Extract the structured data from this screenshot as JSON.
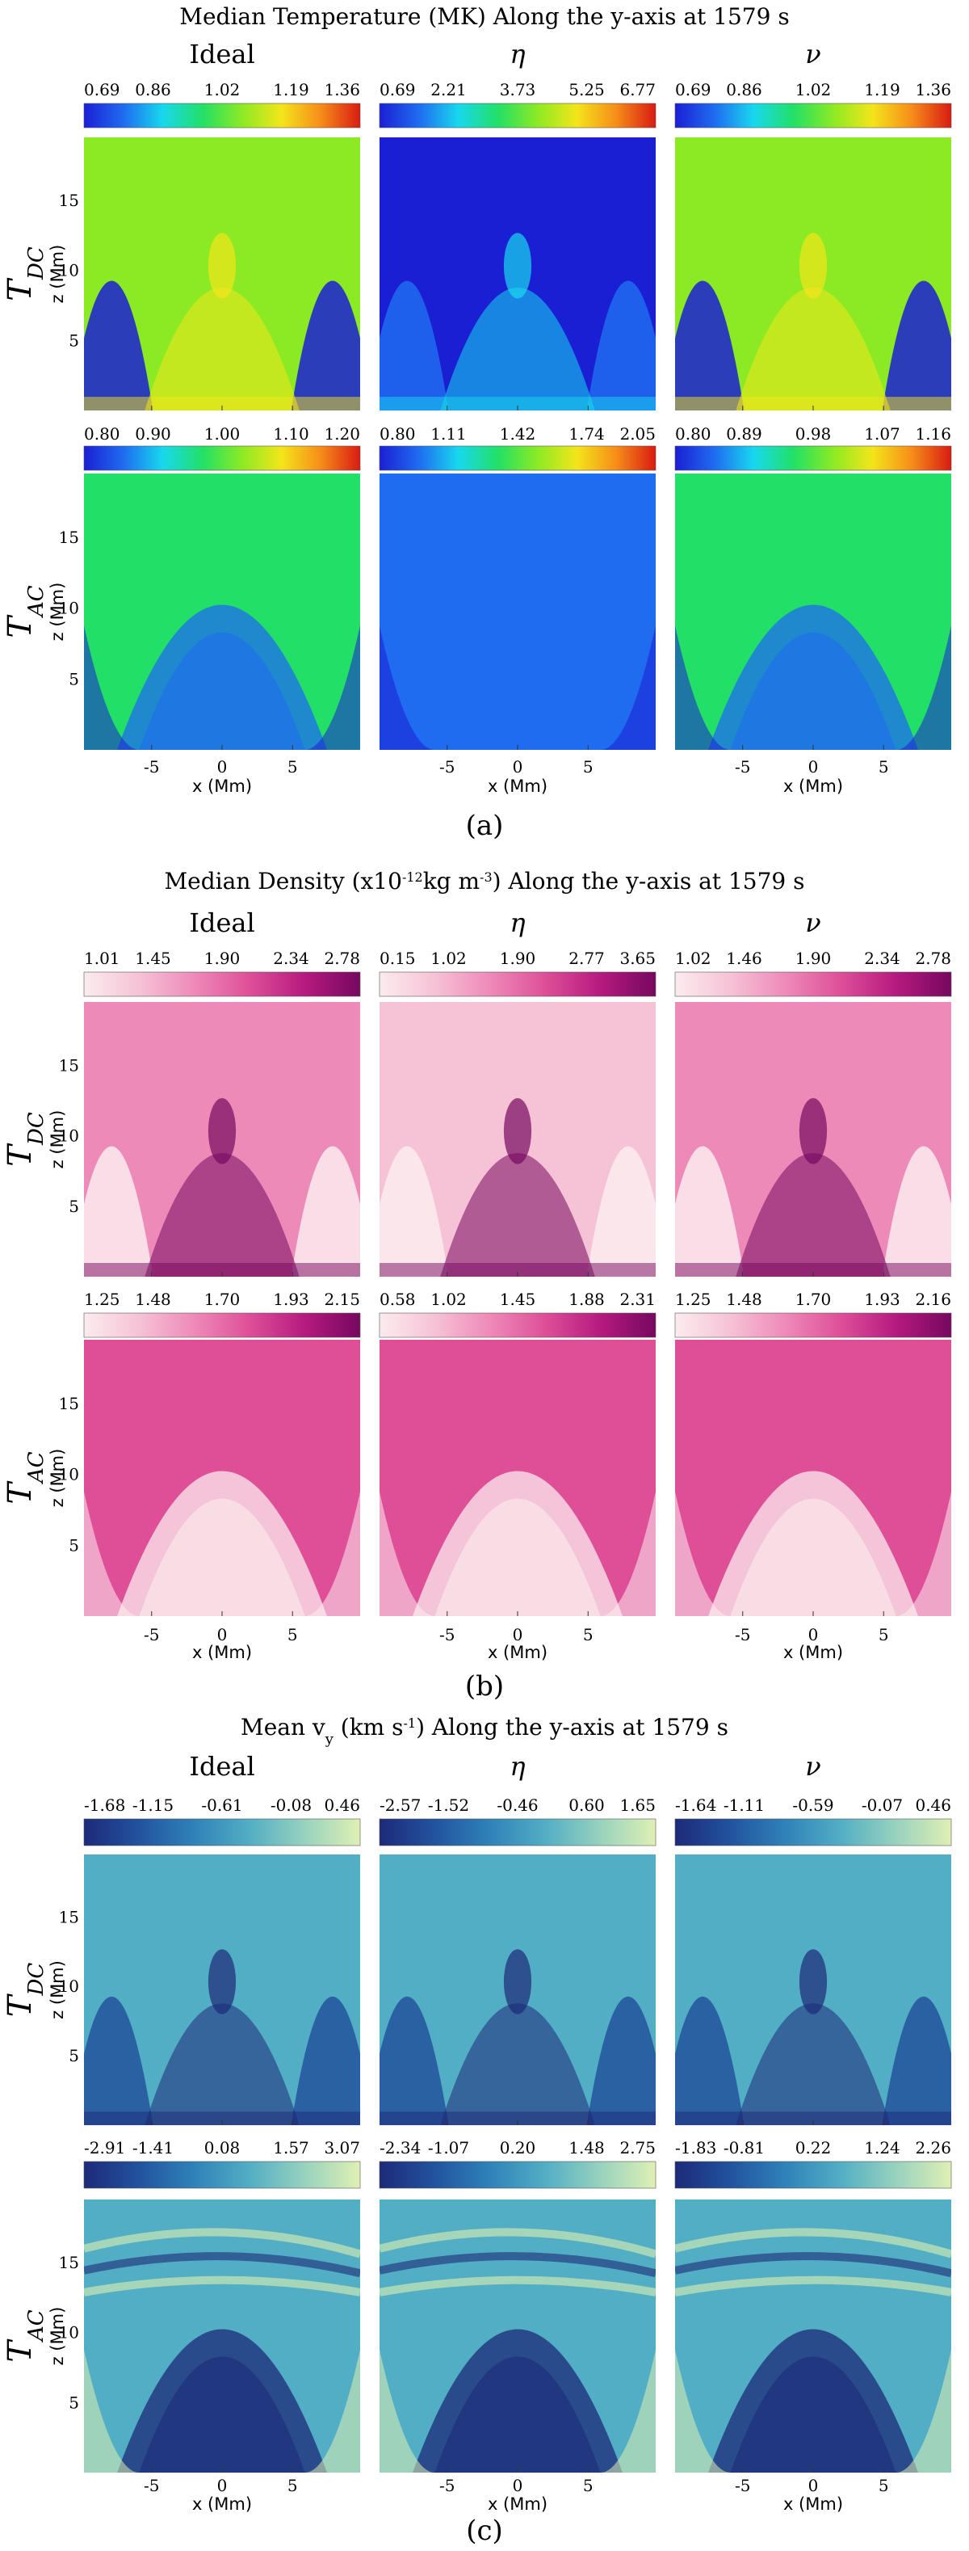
{
  "figure": {
    "columns": [
      "Ideal",
      "η",
      "ν"
    ],
    "rows": [
      "DC",
      "AC"
    ],
    "row_prefix": "T",
    "z_axis_label": "z (Mm)",
    "x_axis_label": "x (Mm)"
  },
  "colors": {
    "temperature": [
      "#1b1fd4",
      "#1f6cf0",
      "#18d8ee",
      "#22e067",
      "#8bea24",
      "#f3e51a",
      "#f68d19",
      "#d81b12"
    ],
    "density": [
      "#fbecee",
      "#f6c2d6",
      "#ee8ab8",
      "#de4f98",
      "#b51a7e",
      "#76085f"
    ],
    "velocity": [
      "#1d2a78",
      "#22539e",
      "#2f82b8",
      "#52aec4",
      "#98d2be",
      "#dff0b4"
    ]
  },
  "chart_data": [
    {
      "type": "heatmap",
      "panel_label": "(a)",
      "title": "Median Temperature (MK) Along the y-axis at 1579 s",
      "colormap": "temperature",
      "xlabel": "x (Mm)",
      "ylabel": "z (Mm)",
      "x_ticks": [
        -5,
        0,
        5
      ],
      "z_ticks": [
        5,
        10,
        15
      ],
      "colorbars": {
        "DC": [
          [
            "0.69",
            "0.86",
            "1.02",
            "1.19",
            "1.36"
          ],
          [
            "0.69",
            "2.21",
            "3.73",
            "5.25",
            "6.77"
          ],
          [
            "0.69",
            "0.86",
            "1.02",
            "1.19",
            "1.36"
          ]
        ],
        "AC": [
          [
            "0.80",
            "0.90",
            "1.00",
            "1.10",
            "1.20"
          ],
          [
            "0.80",
            "1.11",
            "1.42",
            "1.74",
            "2.05"
          ],
          [
            "0.80",
            "0.89",
            "0.98",
            "1.07",
            "1.16"
          ]
        ]
      }
    },
    {
      "type": "heatmap",
      "panel_label": "(b)",
      "title": "Median Density (x10",
      "title_sup": "-12",
      "title_mid": "kg m",
      "title_sup2": "-3",
      "title_end": ") Along the y-axis at 1579 s",
      "colormap": "density",
      "xlabel": "x (Mm)",
      "ylabel": "z (Mm)",
      "x_ticks": [
        -5,
        0,
        5
      ],
      "z_ticks": [
        5,
        10,
        15
      ],
      "colorbars": {
        "DC": [
          [
            "1.01",
            "1.45",
            "1.90",
            "2.34",
            "2.78"
          ],
          [
            "0.15",
            "1.02",
            "1.90",
            "2.77",
            "3.65"
          ],
          [
            "1.02",
            "1.46",
            "1.90",
            "2.34",
            "2.78"
          ]
        ],
        "AC": [
          [
            "1.25",
            "1.48",
            "1.70",
            "1.93",
            "2.15"
          ],
          [
            "0.58",
            "1.02",
            "1.45",
            "1.88",
            "2.31"
          ],
          [
            "1.25",
            "1.48",
            "1.70",
            "1.93",
            "2.16"
          ]
        ]
      }
    },
    {
      "type": "heatmap",
      "panel_label": "(c)",
      "title": "Mean v",
      "title_sub": "y",
      "title_mid": " (km s",
      "title_sup": "-1",
      "title_end": ") Along the y-axis at 1579 s",
      "colormap": "velocity",
      "xlabel": "x (Mm)",
      "ylabel": "z (Mm)",
      "x_ticks": [
        -5,
        0,
        5
      ],
      "z_ticks": [
        5,
        10,
        15
      ],
      "colorbars": {
        "DC": [
          [
            "-1.68",
            "-1.15",
            "-0.61",
            "-0.08",
            "0.46"
          ],
          [
            "-2.57",
            "-1.52",
            "-0.46",
            "0.60",
            "1.65"
          ],
          [
            "-1.64",
            "-1.11",
            "-0.59",
            "-0.07",
            "0.46"
          ]
        ],
        "AC": [
          [
            "-2.91",
            "-1.41",
            "0.08",
            "1.57",
            "3.07"
          ],
          [
            "-2.34",
            "-1.07",
            "0.20",
            "1.48",
            "2.75"
          ],
          [
            "-1.83",
            "-0.81",
            "0.22",
            "1.24",
            "2.26"
          ]
        ]
      }
    }
  ]
}
